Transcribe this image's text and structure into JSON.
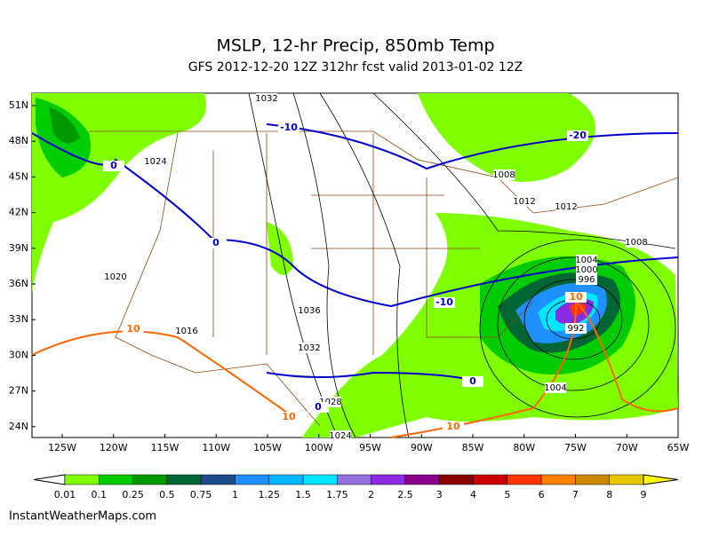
{
  "header": {
    "title": "MSLP, 12-hr Precip, 850mb Temp",
    "subtitle": "GFS 2012-12-20 12Z 312hr fcst valid 2013-01-02 12Z"
  },
  "map": {
    "lat_labels": [
      "51N",
      "48N",
      "45N",
      "42N",
      "39N",
      "36N",
      "33N",
      "30N",
      "27N",
      "24N"
    ],
    "lon_labels": [
      "125W",
      "120W",
      "115W",
      "110W",
      "105W",
      "100W",
      "95W",
      "90W",
      "85W",
      "80W",
      "75W",
      "70W",
      "65W"
    ],
    "contour_labels": [
      {
        "label": "1032",
        "color": "#000000"
      },
      {
        "label": "-10",
        "color": "#0000cc"
      },
      {
        "label": "-20",
        "color": "#0000cc"
      },
      {
        "label": "0",
        "color": "#0000cc"
      },
      {
        "label": "1024",
        "color": "#000000"
      },
      {
        "label": "1008",
        "color": "#000000"
      },
      {
        "label": "1012",
        "color": "#000000"
      },
      {
        "label": "1012",
        "color": "#000000"
      },
      {
        "label": "1008",
        "color": "#000000"
      },
      {
        "label": "0",
        "color": "#0000cc"
      },
      {
        "label": "1004",
        "color": "#000000"
      },
      {
        "label": "1000",
        "color": "#000000"
      },
      {
        "label": "996",
        "color": "#000000"
      },
      {
        "label": "1020",
        "color": "#000000"
      },
      {
        "label": "-10",
        "color": "#0000cc"
      },
      {
        "label": "1036",
        "color": "#000000"
      },
      {
        "label": "10",
        "color": "#ff6600"
      },
      {
        "label": "10",
        "color": "#ff6600"
      },
      {
        "label": "1016",
        "color": "#000000"
      },
      {
        "label": "992",
        "color": "#000000"
      },
      {
        "label": "1032",
        "color": "#000000"
      },
      {
        "label": "1004",
        "color": "#000000"
      },
      {
        "label": "0",
        "color": "#0000cc"
      },
      {
        "label": "1028",
        "color": "#000000"
      },
      {
        "label": "0",
        "color": "#0000cc"
      },
      {
        "label": "10",
        "color": "#ff6600"
      },
      {
        "label": "10",
        "color": "#ff6600"
      },
      {
        "label": "1024",
        "color": "#000000"
      }
    ]
  },
  "legend": {
    "labels": [
      "0.01",
      "0.1",
      "0.25",
      "0.5",
      "0.75",
      "1",
      "1.25",
      "1.5",
      "1.75",
      "2",
      "2.5",
      "3",
      "4",
      "5",
      "6",
      "7",
      "8",
      "9"
    ],
    "colors": [
      "#80ff00",
      "#00cc00",
      "#009900",
      "#006633",
      "#1e4b8c",
      "#1e90ff",
      "#00b4ff",
      "#00e6ff",
      "#9370db",
      "#8a2be2",
      "#8b008b",
      "#8b0000",
      "#cc0000",
      "#ff3300",
      "#ff7f00",
      "#cc8800",
      "#e6c800",
      "#ffff00"
    ]
  },
  "footer": {
    "credit": "InstantWeatherMaps.com"
  }
}
